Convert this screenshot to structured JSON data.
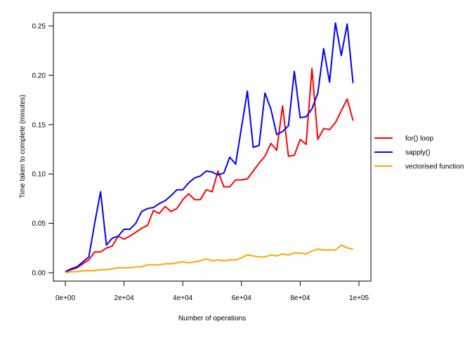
{
  "chart_data": {
    "type": "line",
    "title": "",
    "xlabel": "Number of operations",
    "ylabel": "Time taken to complete (minutes)",
    "xlim": [
      0,
      100000
    ],
    "ylim": [
      0,
      0.25
    ],
    "x_ticks": [
      0,
      20000,
      40000,
      60000,
      80000,
      100000
    ],
    "x_tick_labels": [
      "0e+00",
      "2e+04",
      "4e+04",
      "6e+04",
      "8e+04",
      "1e+05"
    ],
    "y_ticks": [
      0,
      0.05,
      0.1,
      0.15,
      0.2,
      0.25
    ],
    "y_tick_labels": [
      "0.00",
      "0.05",
      "0.10",
      "0.15",
      "0.20",
      "0.25"
    ],
    "grid": false,
    "legend_position": "right",
    "x": [
      0,
      2000,
      4000,
      6000,
      8000,
      10000,
      12000,
      14000,
      16000,
      18000,
      20000,
      22000,
      24000,
      26000,
      28000,
      30000,
      32000,
      34000,
      36000,
      38000,
      40000,
      42000,
      44000,
      46000,
      48000,
      50000,
      52000,
      54000,
      56000,
      58000,
      60000,
      62000,
      64000,
      66000,
      68000,
      70000,
      72000,
      74000,
      76000,
      78000,
      80000,
      82000,
      84000,
      86000,
      88000,
      90000,
      92000,
      94000,
      96000,
      98000,
      100000
    ],
    "series": [
      {
        "name": "for() loop",
        "color": "#ff0000",
        "values": [
          0.001,
          0.003,
          0.005,
          0.009,
          0.013,
          0.021,
          0.021,
          0.025,
          0.027,
          0.037,
          0.034,
          0.037,
          0.041,
          0.045,
          0.048,
          0.063,
          0.06,
          0.067,
          0.062,
          0.065,
          0.074,
          0.08,
          0.074,
          0.074,
          0.084,
          0.082,
          0.103,
          0.087,
          0.087,
          0.094,
          0.094,
          0.095,
          0.103,
          0.111,
          0.118,
          0.131,
          0.124,
          0.169,
          0.118,
          0.119,
          0.135,
          0.13,
          0.207,
          0.135,
          0.146,
          0.145,
          0.152,
          0.164,
          0.176,
          0.154,
          null
        ]
      },
      {
        "name": "sapply()",
        "color": "#0000ff",
        "values": [
          0.001,
          0.004,
          0.006,
          0.011,
          0.016,
          0.05,
          0.082,
          0.028,
          0.035,
          0.037,
          0.044,
          0.044,
          0.05,
          0.062,
          0.065,
          0.066,
          0.07,
          0.073,
          0.078,
          0.084,
          0.084,
          0.091,
          0.096,
          0.098,
          0.103,
          0.102,
          0.099,
          0.101,
          0.117,
          0.11,
          0.147,
          0.184,
          0.127,
          0.129,
          0.182,
          0.166,
          0.14,
          0.143,
          0.149,
          0.204,
          0.157,
          0.158,
          0.166,
          0.182,
          0.227,
          0.193,
          0.253,
          0.22,
          0.252,
          0.192,
          null
        ]
      },
      {
        "name": "vectorised function",
        "color": "#ffa500",
        "values": [
          0.0,
          0.001,
          0.001,
          0.002,
          0.002,
          0.002,
          0.003,
          0.003,
          0.004,
          0.005,
          0.005,
          0.005,
          0.006,
          0.006,
          0.008,
          0.008,
          0.008,
          0.009,
          0.009,
          0.01,
          0.011,
          0.01,
          0.011,
          0.012,
          0.014,
          0.012,
          0.013,
          0.012,
          0.013,
          0.013,
          0.015,
          0.018,
          0.017,
          0.016,
          0.016,
          0.018,
          0.017,
          0.019,
          0.018,
          0.02,
          0.02,
          0.019,
          0.022,
          0.024,
          0.023,
          0.023,
          0.023,
          0.028,
          0.025,
          0.024,
          null
        ]
      }
    ]
  }
}
